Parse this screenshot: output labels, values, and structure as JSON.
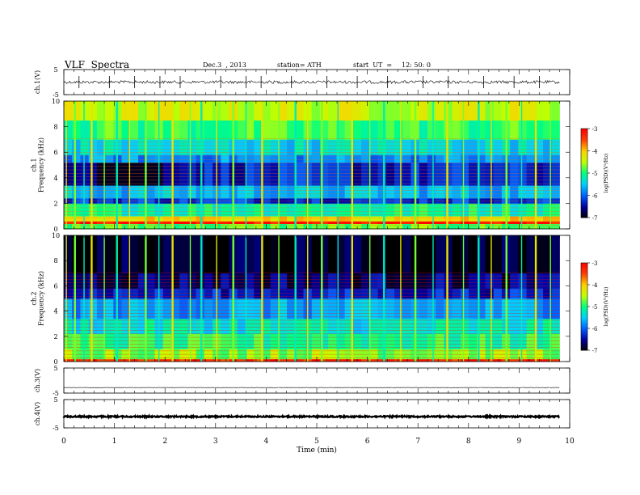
{
  "header": {
    "title": "VLF  Spectra",
    "date": "Dec.3  , 2013",
    "station": "station= ATH",
    "start_label": "start  UT  =",
    "start_time": "12: 50: 0"
  },
  "colors": {
    "spectrogram_scale": [
      "#000000",
      "#0000a0",
      "#0060ff",
      "#00d0ff",
      "#00ff80",
      "#c0ff00",
      "#ffd000",
      "#ff4000",
      "#ff0000",
      "#ffffff"
    ],
    "background": "#ffffff",
    "axis": "#000000"
  },
  "chart_data": [
    {
      "type": "line",
      "panel": "ch1-waveform",
      "ylabel": "ch.1(V)",
      "ylim": [
        -5,
        5
      ],
      "yticks": [
        "5",
        "-5"
      ],
      "xlim": [
        0,
        10
      ],
      "x_end": 9.8,
      "baseline": 0,
      "typical_amplitude": 0.6,
      "spikes": [
        0.3,
        0.9,
        1.4,
        1.9,
        2.3,
        3.1,
        3.6,
        3.9,
        4.5,
        5.2,
        5.8,
        6.4,
        7.1,
        7.6,
        8.3,
        8.9,
        9.4
      ]
    },
    {
      "type": "heatmap",
      "panel": "ch1-spectrogram",
      "ylabel": "ch.1\nFrequency  (kHz)",
      "ylim": [
        0,
        10
      ],
      "yticks": [
        "0",
        "2",
        "4",
        "6",
        "8",
        "10"
      ],
      "xlim": [
        0,
        10
      ],
      "x_end": 9.8,
      "colorbar": {
        "label": "log(PSD)(V²/Hz)",
        "range": [
          -7,
          -3
        ],
        "ticks": [
          "-3",
          "-4",
          "-5",
          "-6",
          "-7"
        ]
      },
      "bands_logpsd": [
        {
          "f": [
            0.0,
            0.4
          ],
          "level": -4.8
        },
        {
          "f": [
            0.4,
            0.6
          ],
          "level": -3.2
        },
        {
          "f": [
            0.6,
            1.0
          ],
          "level": -4.1
        },
        {
          "f": [
            1.0,
            2.0
          ],
          "level": -5.1
        },
        {
          "f": [
            2.0,
            2.4
          ],
          "level": -6.2
        },
        {
          "f": [
            2.4,
            3.4
          ],
          "level": -5.6
        },
        {
          "f": [
            3.4,
            5.2
          ],
          "level": -6.3
        },
        {
          "f": [
            5.2,
            5.8
          ],
          "level": -5.8
        },
        {
          "f": [
            5.8,
            7.0
          ],
          "level": -5.4
        },
        {
          "f": [
            7.0,
            8.5
          ],
          "level": -4.9
        },
        {
          "f": [
            8.5,
            10.0
          ],
          "level": -4.4
        }
      ],
      "quiet_patch": {
        "t": [
          0.6,
          1.9
        ],
        "f": [
          3.4,
          5.6
        ],
        "level": -6.9
      },
      "sferic_times": [
        0.05,
        0.22,
        0.4,
        0.55,
        0.8,
        1.05,
        1.3,
        1.62,
        1.88,
        2.15,
        2.5,
        2.72,
        3.02,
        3.35,
        3.6,
        3.92,
        4.25,
        4.58,
        4.82,
        5.1,
        5.42,
        5.7,
        6.05,
        6.33,
        6.66,
        6.95,
        7.3,
        7.58,
        7.9,
        8.2,
        8.45,
        8.75,
        9.05,
        9.33,
        9.62
      ]
    },
    {
      "type": "heatmap",
      "panel": "ch2-spectrogram",
      "ylabel": "ch.2\nFrequency  (kHz)",
      "ylim": [
        0,
        10
      ],
      "yticks": [
        "0",
        "2",
        "4",
        "6",
        "8",
        "10"
      ],
      "xlim": [
        0,
        10
      ],
      "x_end": 9.8,
      "colorbar": {
        "label": "log(PSD)(V²/Hz)",
        "range": [
          -7,
          -3
        ],
        "ticks": [
          "-3",
          "-4",
          "-5",
          "-6",
          "-7"
        ]
      },
      "bands_logpsd": [
        {
          "f": [
            0.0,
            0.2
          ],
          "level": -3.3
        },
        {
          "f": [
            0.2,
            1.0
          ],
          "level": -4.6
        },
        {
          "f": [
            1.0,
            2.2
          ],
          "level": -5.0
        },
        {
          "f": [
            2.2,
            3.4
          ],
          "level": -5.3
        },
        {
          "f": [
            3.4,
            5.0
          ],
          "level": -5.7
        },
        {
          "f": [
            5.0,
            5.8
          ],
          "level": -6.3
        },
        {
          "f": [
            5.8,
            7.0
          ],
          "level": -6.6
        },
        {
          "f": [
            7.0,
            10.0
          ],
          "level": -6.9
        }
      ],
      "quiet_patch": {
        "t": [
          0.6,
          1.9
        ],
        "f": [
          3.8,
          4.8
        ],
        "level": -6.3
      },
      "sferic_times": [
        0.05,
        0.22,
        0.4,
        0.55,
        0.8,
        1.05,
        1.3,
        1.62,
        1.88,
        2.15,
        2.5,
        2.72,
        3.02,
        3.35,
        3.6,
        3.92,
        4.25,
        4.58,
        4.82,
        5.1,
        5.42,
        5.7,
        6.05,
        6.33,
        6.66,
        6.95,
        7.3,
        7.58,
        7.9,
        8.2,
        8.45,
        8.75,
        9.05,
        9.33,
        9.62
      ]
    },
    {
      "type": "line",
      "panel": "ch3-waveform",
      "ylabel": "ch.3(V)",
      "ylim": [
        -5,
        5
      ],
      "yticks": [
        "5",
        "-5"
      ],
      "xlim": [
        0,
        10
      ],
      "x_end": 9.8,
      "baseline": -2.8,
      "typical_amplitude": 0.05
    },
    {
      "type": "line",
      "panel": "ch4-waveform",
      "ylabel": "ch.4(V)",
      "ylim": [
        -5,
        5
      ],
      "yticks": [
        "5",
        "-5"
      ],
      "xlim": [
        0,
        10
      ],
      "x_end": 9.8,
      "baseline": -1.0,
      "typical_amplitude": 0.25,
      "xlabel": "Time  (min)",
      "xticks": [
        "0",
        "1",
        "2",
        "3",
        "4",
        "5",
        "6",
        "7",
        "8",
        "9",
        "10"
      ]
    }
  ]
}
